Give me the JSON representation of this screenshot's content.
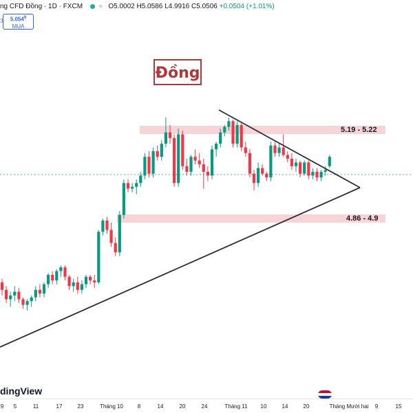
{
  "header": {
    "symbol_title": "ng CFD Đồng · 1D · FXCM",
    "open": "O5.0002",
    "high": "H5.0586",
    "low": "L4.9916",
    "close": "C5.0506",
    "change": "+0.0504 (+1.01%)"
  },
  "buy_box": {
    "price": "5.054",
    "price_sup": "9",
    "label": "MUA"
  },
  "side_number": "3",
  "title_label": "Đồng",
  "zones": {
    "upper": {
      "label": "5.19 - 5.22"
    },
    "lower": {
      "label": "4.86 - 4.9"
    }
  },
  "brand": "dingView",
  "x_axis": {
    "ticks": [
      "9",
      "5",
      "11",
      "17",
      "23",
      "Tháng 10",
      "8",
      "14",
      "20",
      "24",
      "Tháng 11",
      "10",
      "14",
      "20",
      "Tháng Mười hai",
      "9",
      "15"
    ]
  },
  "colors": {
    "up": "#089981",
    "down": "#f23645",
    "zone": "#f7c6c9",
    "title": "#b2373a"
  },
  "chart_data": {
    "type": "candlestick",
    "title": "Đồng",
    "x_axis_ticks": [
      "9",
      "5",
      "11",
      "17",
      "23",
      "Tháng 10",
      "8",
      "14",
      "20",
      "24",
      "Tháng 11",
      "10",
      "14",
      "20",
      "Tháng Mười hai",
      "9",
      "15"
    ],
    "zones": [
      {
        "label": "5.19 - 5.22",
        "low": 5.19,
        "high": 5.22
      },
      {
        "label": "4.86 - 4.9",
        "low": 4.86,
        "high": 4.9
      }
    ],
    "last_close": 5.0506,
    "candles_ohlc": [
      [
        4.38,
        4.4,
        4.31,
        4.34
      ],
      [
        4.34,
        4.36,
        4.27,
        4.29
      ],
      [
        4.29,
        4.33,
        4.25,
        4.31
      ],
      [
        4.31,
        4.36,
        4.28,
        4.33
      ],
      [
        4.33,
        4.35,
        4.27,
        4.29
      ],
      [
        4.29,
        4.3,
        4.24,
        4.26
      ],
      [
        4.26,
        4.29,
        4.23,
        4.28
      ],
      [
        4.28,
        4.31,
        4.25,
        4.3
      ],
      [
        4.3,
        4.36,
        4.28,
        4.34
      ],
      [
        4.34,
        4.37,
        4.3,
        4.32
      ],
      [
        4.32,
        4.38,
        4.3,
        4.37
      ],
      [
        4.37,
        4.43,
        4.35,
        4.42
      ],
      [
        4.42,
        4.44,
        4.37,
        4.39
      ],
      [
        4.39,
        4.45,
        4.37,
        4.44
      ],
      [
        4.44,
        4.47,
        4.41,
        4.46
      ],
      [
        4.46,
        4.47,
        4.39,
        4.41
      ],
      [
        4.41,
        4.42,
        4.34,
        4.36
      ],
      [
        4.36,
        4.4,
        4.33,
        4.38
      ],
      [
        4.38,
        4.41,
        4.32,
        4.34
      ],
      [
        4.34,
        4.39,
        4.32,
        4.37
      ],
      [
        4.37,
        4.42,
        4.35,
        4.41
      ],
      [
        4.41,
        4.42,
        4.37,
        4.39
      ],
      [
        4.39,
        4.42,
        4.35,
        4.38
      ],
      [
        4.38,
        4.66,
        4.37,
        4.65
      ],
      [
        4.65,
        4.72,
        4.63,
        4.71
      ],
      [
        4.71,
        4.73,
        4.64,
        4.66
      ],
      [
        4.66,
        4.7,
        4.57,
        4.59
      ],
      [
        4.59,
        4.62,
        4.52,
        4.54
      ],
      [
        4.54,
        4.76,
        4.52,
        4.74
      ],
      [
        4.74,
        4.93,
        4.72,
        4.91
      ],
      [
        4.91,
        4.93,
        4.86,
        4.88
      ],
      [
        4.88,
        4.91,
        4.86,
        4.89
      ],
      [
        4.89,
        4.93,
        4.85,
        4.91
      ],
      [
        4.91,
        4.97,
        4.89,
        4.95
      ],
      [
        4.95,
        5.07,
        4.93,
        5.05
      ],
      [
        5.05,
        5.08,
        4.94,
        4.96
      ],
      [
        4.96,
        5.1,
        4.94,
        5.08
      ],
      [
        5.08,
        5.11,
        5.03,
        5.05
      ],
      [
        5.05,
        5.14,
        5.03,
        5.12
      ],
      [
        5.12,
        5.26,
        5.1,
        5.18
      ],
      [
        5.18,
        5.22,
        5.12,
        5.15
      ],
      [
        5.15,
        5.17,
        4.89,
        4.91
      ],
      [
        4.91,
        5.2,
        4.89,
        5.17
      ],
      [
        5.17,
        5.19,
        4.98,
        5.0
      ],
      [
        5.0,
        5.04,
        4.95,
        4.97
      ],
      [
        4.97,
        5.06,
        4.95,
        5.05
      ],
      [
        5.05,
        5.09,
        5.01,
        5.03
      ],
      [
        5.03,
        5.07,
        4.99,
        5.01
      ],
      [
        5.01,
        5.04,
        4.88,
        4.97
      ],
      [
        4.97,
        5.0,
        4.92,
        4.95
      ],
      [
        4.95,
        5.11,
        4.93,
        5.09
      ],
      [
        5.09,
        5.13,
        5.05,
        5.12
      ],
      [
        5.12,
        5.2,
        5.1,
        5.18
      ],
      [
        5.18,
        5.22,
        5.16,
        5.21
      ],
      [
        5.21,
        5.26,
        5.19,
        5.24
      ],
      [
        5.24,
        5.25,
        5.1,
        5.12
      ],
      [
        5.12,
        5.24,
        5.1,
        5.22
      ],
      [
        5.22,
        5.23,
        5.08,
        5.1
      ],
      [
        5.1,
        5.13,
        5.05,
        5.07
      ],
      [
        5.07,
        5.09,
        4.94,
        4.96
      ],
      [
        4.96,
        4.98,
        4.87,
        4.91
      ],
      [
        4.91,
        5.02,
        4.89,
        4.99
      ],
      [
        4.99,
        5.01,
        4.95,
        4.96
      ],
      [
        4.96,
        4.97,
        4.92,
        4.94
      ],
      [
        4.94,
        5.13,
        4.92,
        5.11
      ],
      [
        5.11,
        5.13,
        5.05,
        5.07
      ],
      [
        5.07,
        5.12,
        5.05,
        5.1
      ],
      [
        5.1,
        5.17,
        5.05,
        5.06
      ],
      [
        5.06,
        5.08,
        5.02,
        5.04
      ],
      [
        5.04,
        5.07,
        4.98,
        5.0
      ],
      [
        5.0,
        5.04,
        4.97,
        5.02
      ],
      [
        5.02,
        5.03,
        4.94,
        4.96
      ],
      [
        4.96,
        5.03,
        4.95,
        5.02
      ],
      [
        5.02,
        5.03,
        4.93,
        4.95
      ],
      [
        4.95,
        4.99,
        4.93,
        4.97
      ],
      [
        4.97,
        4.99,
        4.92,
        4.94
      ],
      [
        4.94,
        4.98,
        4.92,
        4.97
      ],
      [
        4.97,
        5.0,
        4.95,
        4.98
      ],
      [
        5.0,
        5.06,
        4.99,
        5.05
      ]
    ]
  }
}
